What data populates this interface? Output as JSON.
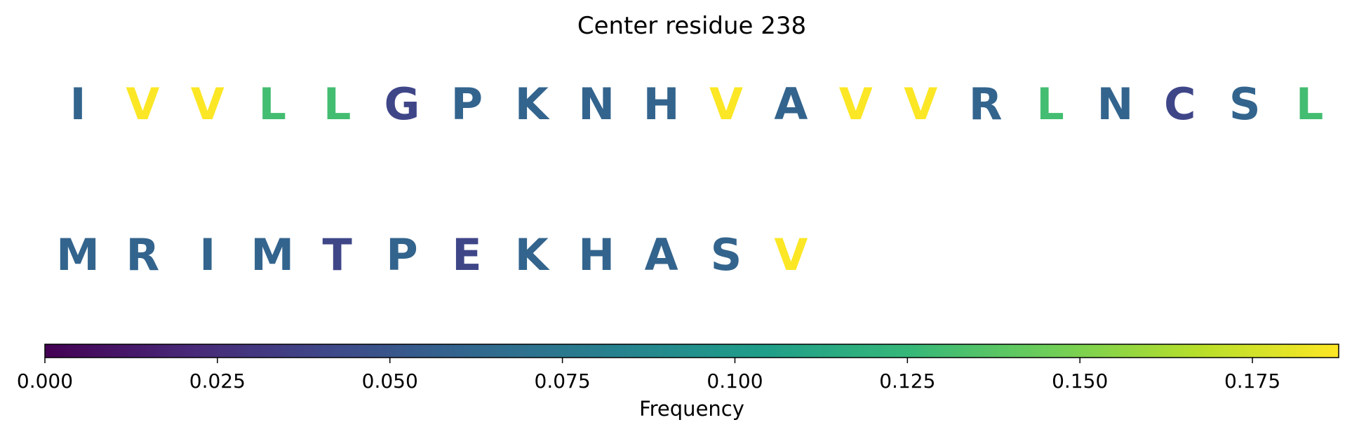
{
  "chart_data": {
    "type": "sequence-logo",
    "title": "Center residue 238",
    "rows": [
      {
        "residues": [
          {
            "letter": "I",
            "frequency": 0.06
          },
          {
            "letter": "V",
            "frequency": 0.187
          },
          {
            "letter": "V",
            "frequency": 0.187
          },
          {
            "letter": "L",
            "frequency": 0.13
          },
          {
            "letter": "L",
            "frequency": 0.13
          },
          {
            "letter": "G",
            "frequency": 0.04
          },
          {
            "letter": "P",
            "frequency": 0.06
          },
          {
            "letter": "K",
            "frequency": 0.06
          },
          {
            "letter": "N",
            "frequency": 0.06
          },
          {
            "letter": "H",
            "frequency": 0.06
          },
          {
            "letter": "V",
            "frequency": 0.187
          },
          {
            "letter": "A",
            "frequency": 0.06
          },
          {
            "letter": "V",
            "frequency": 0.187
          },
          {
            "letter": "V",
            "frequency": 0.187
          },
          {
            "letter": "R",
            "frequency": 0.06
          },
          {
            "letter": "L",
            "frequency": 0.13
          },
          {
            "letter": "N",
            "frequency": 0.06
          },
          {
            "letter": "C",
            "frequency": 0.04
          },
          {
            "letter": "S",
            "frequency": 0.06
          },
          {
            "letter": "L",
            "frequency": 0.13
          }
        ]
      },
      {
        "residues": [
          {
            "letter": "M",
            "frequency": 0.06
          },
          {
            "letter": "R",
            "frequency": 0.06
          },
          {
            "letter": "I",
            "frequency": 0.06
          },
          {
            "letter": "M",
            "frequency": 0.06
          },
          {
            "letter": "T",
            "frequency": 0.04
          },
          {
            "letter": "P",
            "frequency": 0.06
          },
          {
            "letter": "E",
            "frequency": 0.04
          },
          {
            "letter": "K",
            "frequency": 0.06
          },
          {
            "letter": "H",
            "frequency": 0.06
          },
          {
            "letter": "A",
            "frequency": 0.06
          },
          {
            "letter": "S",
            "frequency": 0.06
          },
          {
            "letter": "V",
            "frequency": 0.187
          }
        ]
      }
    ],
    "colorbar": {
      "colormap": "viridis",
      "range": [
        0,
        0.1875
      ],
      "ticks": [
        "0.000",
        "0.025",
        "0.050",
        "0.075",
        "0.100",
        "0.125",
        "0.150",
        "0.175"
      ],
      "label": "Frequency",
      "stops": [
        "#440154",
        "#482878",
        "#3e4989",
        "#31688e",
        "#26828e",
        "#1f9e89",
        "#35b779",
        "#6ece58",
        "#b5de2b",
        "#fde725"
      ]
    }
  }
}
